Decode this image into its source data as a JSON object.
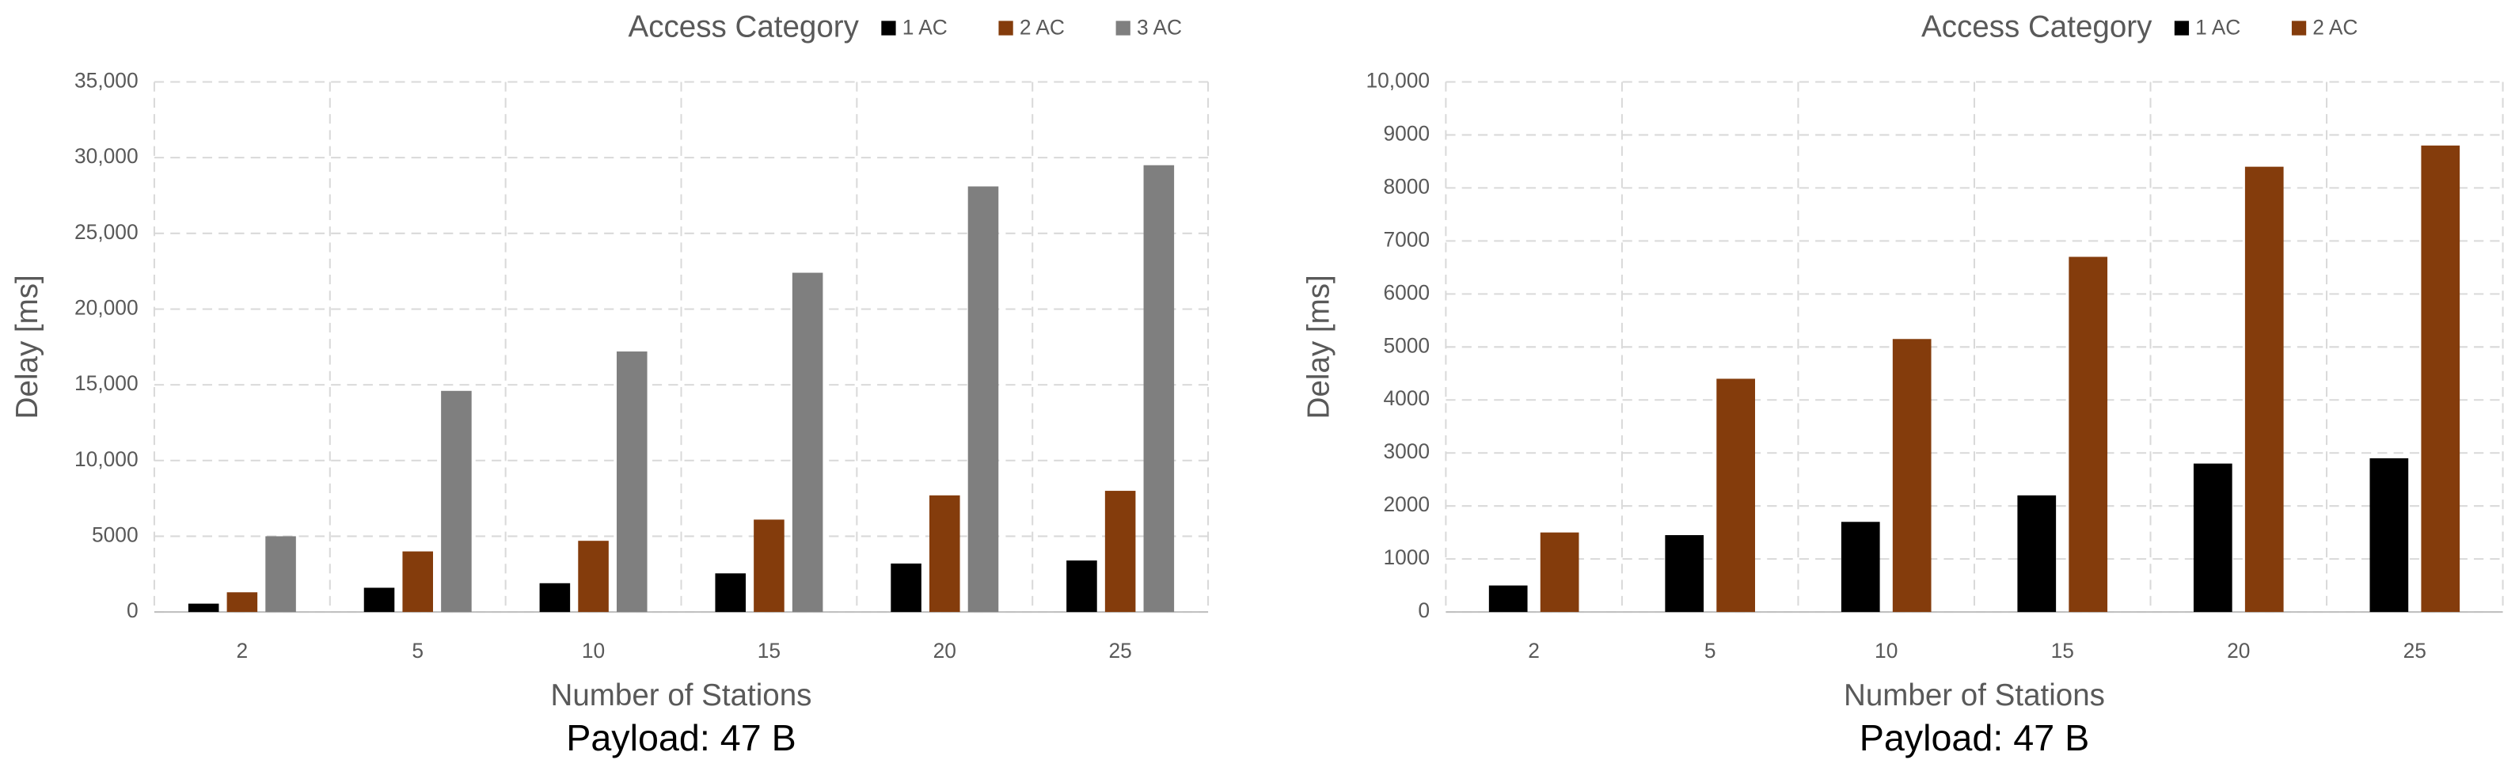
{
  "chart_data": [
    {
      "type": "bar",
      "legend_title": "Access Category",
      "x_label": "Number of Stations",
      "y_label": "Delay [ms]",
      "caption": "Payload: 47 B",
      "categories": [
        "2",
        "5",
        "10",
        "15",
        "20",
        "25"
      ],
      "series": [
        {
          "name": "1 AC",
          "color": "#000000",
          "values": [
            550,
            1600,
            1900,
            2550,
            3200,
            3400
          ]
        },
        {
          "name": "2 AC",
          "color": "#843c0c",
          "values": [
            1300,
            4000,
            4700,
            6100,
            7700,
            8000
          ]
        },
        {
          "name": "3 AC",
          "color": "#7f7f7f",
          "values": [
            5000,
            14600,
            17200,
            22400,
            28100,
            29500
          ]
        }
      ],
      "ylim": [
        0,
        35000
      ],
      "yticks": [
        0,
        5000,
        {
          "value": 10000,
          "label": "10,000"
        },
        {
          "value": 15000,
          "label": "15,000"
        },
        {
          "value": 20000,
          "label": "20,000"
        },
        {
          "value": 25000,
          "label": "25,000"
        },
        {
          "value": 30000,
          "label": "30,000"
        },
        {
          "value": 35000,
          "label": "35,000"
        }
      ],
      "grid": true
    },
    {
      "type": "bar",
      "legend_title": "Access Category",
      "x_label": "Number of Stations",
      "y_label": "Delay [ms]",
      "caption": "Payload: 47 B",
      "categories": [
        "2",
        "5",
        "10",
        "15",
        "20",
        "25"
      ],
      "series": [
        {
          "name": "1 AC",
          "color": "#000000",
          "values": [
            500,
            1450,
            1700,
            2200,
            2800,
            2900
          ]
        },
        {
          "name": "2 AC",
          "color": "#843c0c",
          "values": [
            1500,
            4400,
            5150,
            6700,
            8400,
            8800
          ]
        }
      ],
      "ylim": [
        0,
        10000
      ],
      "yticks": [
        0,
        1000,
        2000,
        3000,
        4000,
        5000,
        6000,
        7000,
        8000,
        9000,
        {
          "value": 10000,
          "label": "10,000"
        }
      ],
      "grid": true
    }
  ]
}
